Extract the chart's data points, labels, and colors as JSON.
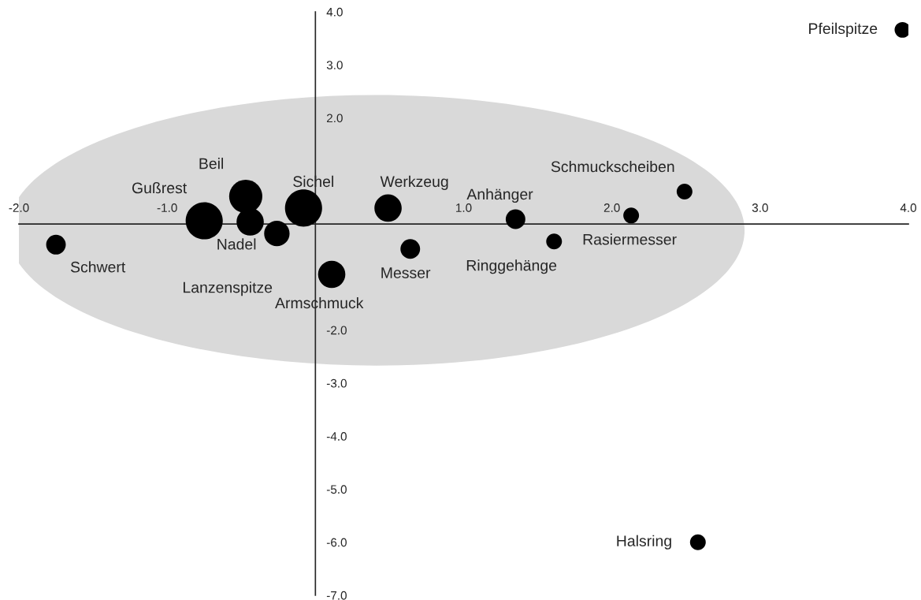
{
  "chart_data": {
    "type": "bubble",
    "series": [
      {
        "name": "Schwert",
        "color": "#000000",
        "x": [
          -1.75
        ],
        "values": [
          -0.39
        ],
        "sizes": [
          0.28
        ]
      },
      {
        "name": "Gußrest",
        "color": "#000000",
        "x": [
          -0.75
        ],
        "values": [
          0.06
        ],
        "sizes": [
          1
        ]
      },
      {
        "name": "Beil",
        "color": "#000000",
        "x": [
          -0.47
        ],
        "values": [
          0.52
        ],
        "sizes": [
          0.8
        ]
      },
      {
        "name": "Nadel",
        "color": "#000000",
        "x": [
          -0.44
        ],
        "values": [
          0.04
        ],
        "sizes": [
          0.54
        ]
      },
      {
        "name": "Lanzenspitze",
        "color": "#000000",
        "x": [
          -0.26
        ],
        "values": [
          -0.18
        ],
        "sizes": [
          0.47
        ]
      },
      {
        "name": "Sichel",
        "color": "#000000",
        "x": [
          -0.08
        ],
        "values": [
          0.3
        ],
        "sizes": [
          1
        ]
      },
      {
        "name": "Armschmuck",
        "color": "#000000",
        "x": [
          0.11
        ],
        "values": [
          -0.95
        ],
        "sizes": [
          0.54
        ]
      },
      {
        "name": "Werkzeug",
        "color": "#000000",
        "x": [
          0.49
        ],
        "values": [
          0.3
        ],
        "sizes": [
          0.54
        ]
      },
      {
        "name": "Messer",
        "color": "#000000",
        "x": [
          0.64
        ],
        "values": [
          -0.47
        ],
        "sizes": [
          0.28
        ]
      },
      {
        "name": "Anhänger",
        "color": "#000000",
        "x": [
          1.35
        ],
        "values": [
          0.09
        ],
        "sizes": [
          0.28
        ]
      },
      {
        "name": "Ringgehänge",
        "color": "#000000",
        "x": [
          1.61
        ],
        "values": [
          -0.33
        ],
        "sizes": [
          0.18
        ]
      },
      {
        "name": "Rasiermesser",
        "color": "#000000",
        "x": [
          2.13
        ],
        "values": [
          0.16
        ],
        "sizes": [
          0.18
        ]
      },
      {
        "name": "Schmuckscheiben",
        "color": "#000000",
        "x": [
          2.49
        ],
        "values": [
          0.61
        ],
        "sizes": [
          0.18
        ]
      },
      {
        "name": "Pfeilspitze",
        "color": "#000000",
        "x": [
          3.96
        ],
        "values": [
          3.66
        ],
        "sizes": [
          0.18
        ]
      },
      {
        "name": "Halsring",
        "color": "#000000",
        "x": [
          2.58
        ],
        "values": [
          -6.0
        ],
        "sizes": [
          0.18
        ]
      }
    ],
    "xlim": [
      -2.0,
      4.0
    ],
    "xticks": [
      {
        "value": -2,
        "label": "-2.0"
      },
      {
        "value": -1,
        "label": "-1.0"
      },
      {
        "value": 1,
        "label": "1.0"
      },
      {
        "value": 2,
        "label": "2.0"
      },
      {
        "value": 3,
        "label": "3.0"
      },
      {
        "value": 4,
        "label": "4.0"
      }
    ],
    "ylim": [
      -7.0,
      4.0
    ],
    "yticks": [
      {
        "value": -7,
        "label": "-7.0"
      },
      {
        "value": -6,
        "label": "-6.0"
      },
      {
        "value": -5,
        "label": "-5.0"
      },
      {
        "value": -4,
        "label": "-4.0"
      },
      {
        "value": -3,
        "label": "-3.0"
      },
      {
        "value": -2,
        "label": "-2.0"
      },
      {
        "value": 2,
        "label": "2.0"
      },
      {
        "value": 3,
        "label": "3.0"
      },
      {
        "value": 4,
        "label": "4.0"
      }
    ],
    "grid": false,
    "legend": false
  }
}
